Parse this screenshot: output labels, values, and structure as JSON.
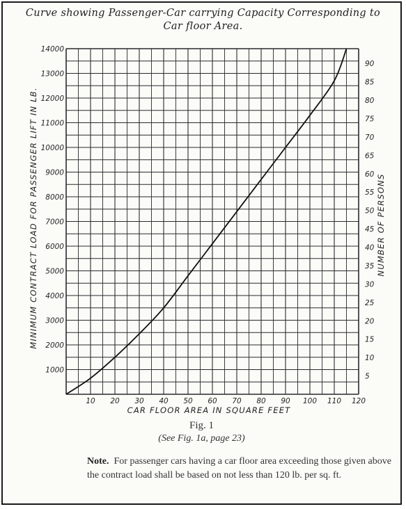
{
  "title": {
    "line1": "Curve showing Passenger-Car carrying Capacity Corresponding to",
    "line2": "Car floor Area."
  },
  "colors": {
    "ink": "#1f1f1f",
    "grid": "#2a2a2a",
    "paper": "#fbfbf8"
  },
  "chart_data": {
    "type": "line",
    "xlabel": "CAR FLOOR AREA IN SQUARE FEET",
    "ylabel": "MINIMUM CONTRACT LOAD FOR PASSENGER LIFT IN LB.",
    "y2label": "NUMBER OF PERSONS",
    "xlim": [
      0,
      120
    ],
    "ylim": [
      0,
      14000
    ],
    "y2lim": [
      0,
      94
    ],
    "grid": true,
    "x_ticks": [
      "10",
      "20",
      "30",
      "40",
      "50",
      "60",
      "70",
      "80",
      "90",
      "100",
      "110",
      "120"
    ],
    "y_ticks": [
      "1000",
      "2000",
      "3000",
      "4000",
      "5000",
      "6000",
      "7000",
      "8000",
      "9000",
      "10000",
      "11000",
      "12000",
      "13000",
      "14000"
    ],
    "y2_ticks": [
      "5",
      "10",
      "15",
      "20",
      "25",
      "30",
      "35",
      "40",
      "45",
      "50",
      "55",
      "60",
      "65",
      "70",
      "75",
      "80",
      "85",
      "90"
    ],
    "series": [
      {
        "x": [
          0,
          10,
          20,
          30,
          40,
          50,
          60,
          70,
          80,
          90,
          100,
          110,
          115
        ],
        "y": [
          0,
          650,
          1500,
          2450,
          3500,
          4800,
          6100,
          7400,
          8700,
          10000,
          11300,
          12700,
          14000
        ]
      }
    ]
  },
  "figure": {
    "number": "Fig. 1",
    "reference": "(See Fig. 1a, page 23)"
  },
  "note": {
    "label": "Note.",
    "text": "For passenger cars having a car floor area exceeding those given above the contract load shall be based on not less than 120 lb. per sq. ft."
  }
}
